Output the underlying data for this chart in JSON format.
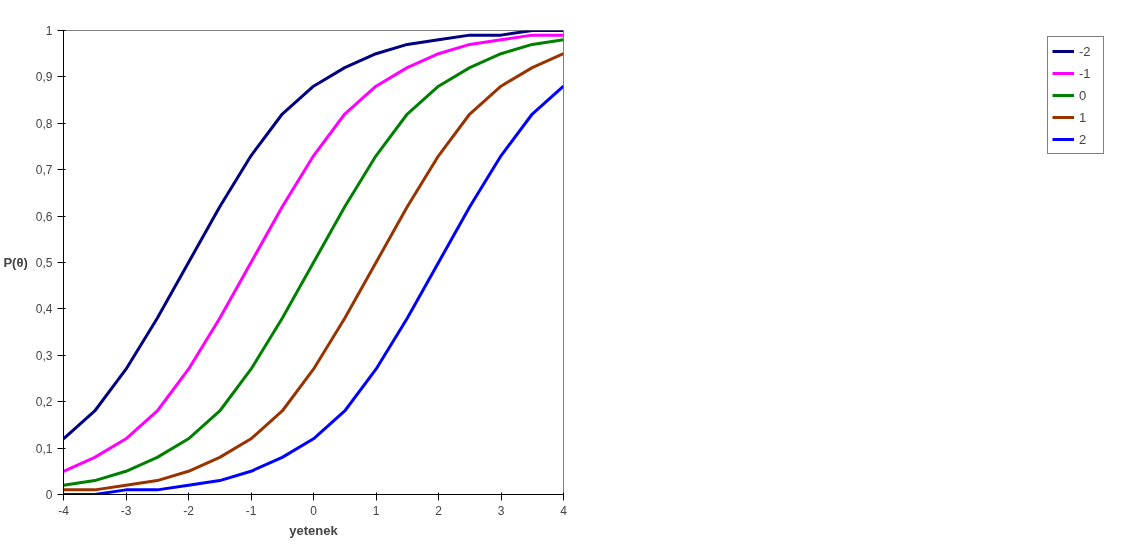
{
  "chart_data": {
    "type": "line",
    "xlabel": "yetenek",
    "ylabel": "P(θ)",
    "x": [
      -4,
      -3.5,
      -3,
      -2.5,
      -2,
      -1.5,
      -1,
      -0.5,
      0,
      0.5,
      1,
      1.5,
      2,
      2.5,
      3,
      3.5,
      4
    ],
    "series": [
      {
        "name": "-2",
        "color": "#000080",
        "values": [
          0.12,
          0.18,
          0.27,
          0.38,
          0.5,
          0.62,
          0.73,
          0.82,
          0.88,
          0.92,
          0.95,
          0.97,
          0.98,
          0.99,
          0.99,
          1.0,
          1.0
        ]
      },
      {
        "name": "-1",
        "color": "#ff00ff",
        "values": [
          0.05,
          0.08,
          0.12,
          0.18,
          0.27,
          0.38,
          0.5,
          0.62,
          0.73,
          0.82,
          0.88,
          0.92,
          0.95,
          0.97,
          0.98,
          0.99,
          0.99
        ]
      },
      {
        "name": "0",
        "color": "#008000",
        "values": [
          0.02,
          0.03,
          0.05,
          0.08,
          0.12,
          0.18,
          0.27,
          0.38,
          0.5,
          0.62,
          0.73,
          0.82,
          0.88,
          0.92,
          0.95,
          0.97,
          0.98
        ]
      },
      {
        "name": "1",
        "color": "#993300",
        "values": [
          0.01,
          0.01,
          0.02,
          0.03,
          0.05,
          0.08,
          0.12,
          0.18,
          0.27,
          0.38,
          0.5,
          0.62,
          0.73,
          0.82,
          0.88,
          0.92,
          0.95
        ]
      },
      {
        "name": "2",
        "color": "#0000ff",
        "values": [
          0,
          0,
          0.01,
          0.01,
          0.02,
          0.03,
          0.05,
          0.08,
          0.12,
          0.18,
          0.27,
          0.38,
          0.5,
          0.62,
          0.73,
          0.82,
          0.88
        ]
      }
    ],
    "xlim": [
      -4,
      4
    ],
    "xticks": [
      -4,
      -3,
      -2,
      -1,
      0,
      1,
      2,
      3,
      4
    ],
    "ylim": [
      0,
      1
    ],
    "yticks": [
      0,
      {
        "value": 0.1,
        "label": "0,1"
      },
      {
        "value": 0.2,
        "label": "0,2"
      },
      {
        "value": 0.3,
        "label": "0,3"
      },
      {
        "value": 0.4,
        "label": "0,4"
      },
      {
        "value": 0.5,
        "label": "0,5"
      },
      {
        "value": 0.6,
        "label": "0,6"
      },
      {
        "value": 0.7,
        "label": "0,7"
      },
      {
        "value": 0.8,
        "label": "0,8"
      },
      {
        "value": 0.9,
        "label": "0,9"
      },
      1
    ],
    "grid": false,
    "legend": "right",
    "marker": "none",
    "line_style": "solid"
  }
}
